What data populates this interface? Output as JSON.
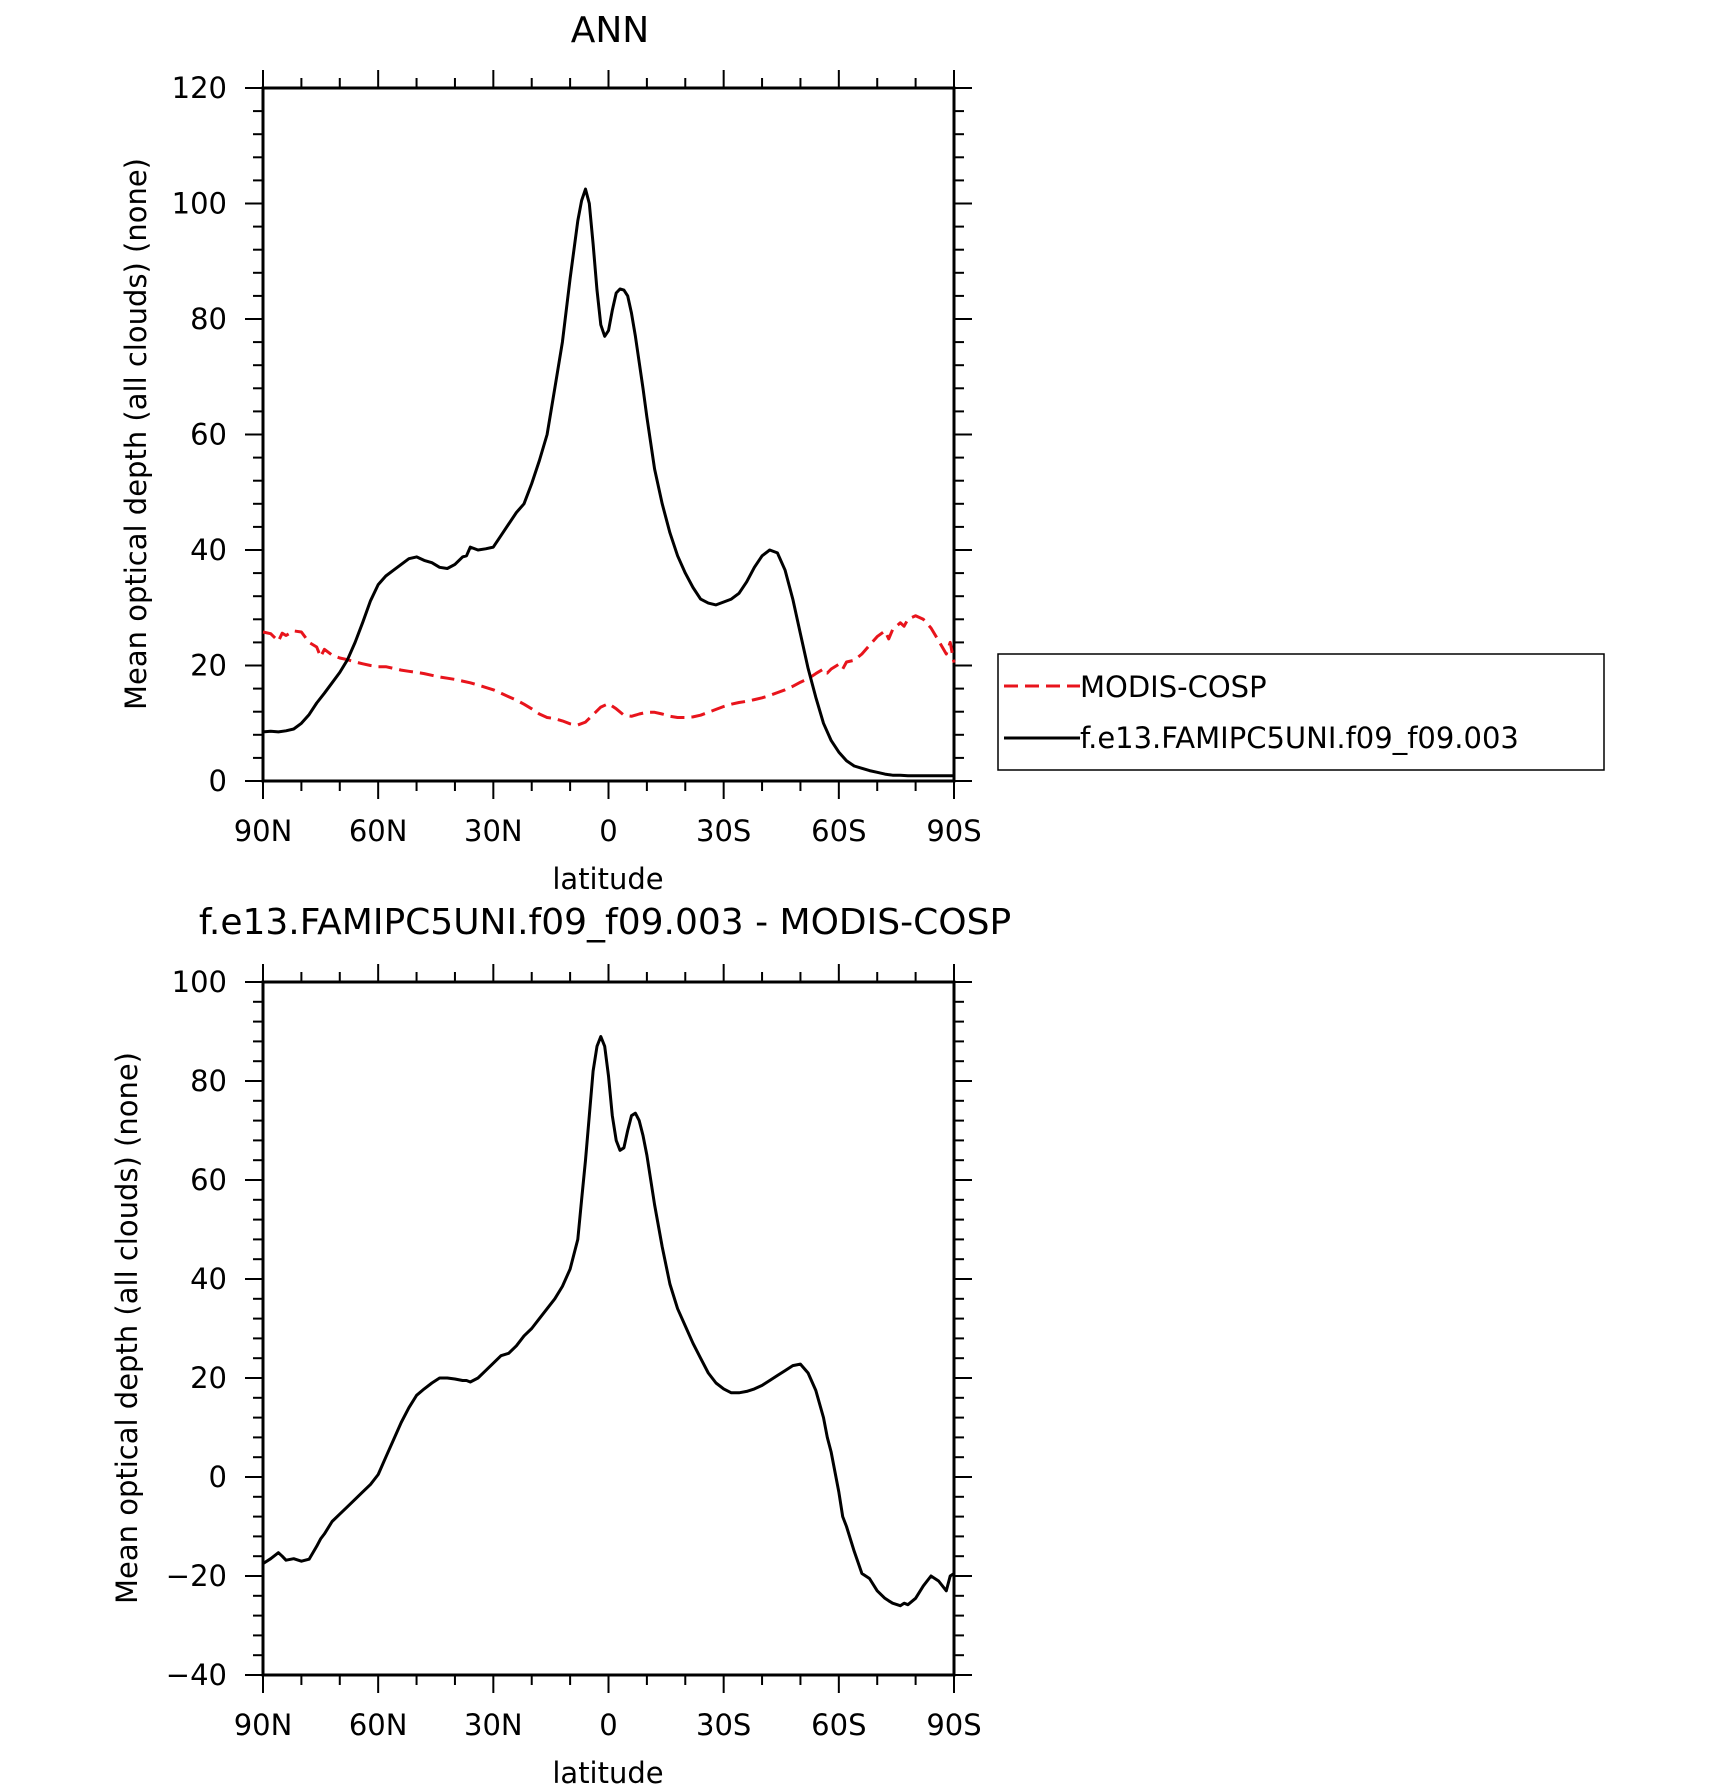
{
  "chart_data": [
    {
      "type": "line",
      "title": "ANN",
      "xlabel": "latitude",
      "ylabel": "Mean optical depth (all clouds) (none)",
      "xlim": [
        -90,
        90
      ],
      "ylim": [
        0,
        120
      ],
      "xticks": [
        -90,
        -60,
        -30,
        0,
        30,
        60,
        90
      ],
      "xtick_labels": [
        "90N",
        "60N",
        "30N",
        "0",
        "30S",
        "60S",
        "90S"
      ],
      "yticks": [
        0,
        20,
        40,
        60,
        80,
        100,
        120
      ],
      "ytick_labels": [
        "0",
        "20",
        "40",
        "60",
        "80",
        "100",
        "120"
      ],
      "grid": false,
      "legend_position": "right",
      "series": [
        {
          "name": "MODIS-COSP",
          "color": "#e8141c",
          "style": "dashed",
          "x": [
            -90,
            -88,
            -86,
            -85,
            -84,
            -82,
            -80,
            -78,
            -76,
            -75,
            -74,
            -72,
            -70,
            -68,
            -66,
            -64,
            -62,
            -60,
            -58,
            -56,
            -54,
            -52,
            -50,
            -48,
            -46,
            -44,
            -42,
            -40,
            -38,
            -36,
            -34,
            -32,
            -30,
            -28,
            -26,
            -24,
            -22,
            -20,
            -18,
            -16,
            -14,
            -12,
            -10,
            -8,
            -6,
            -4,
            -2,
            0,
            2,
            4,
            6,
            8,
            10,
            12,
            14,
            16,
            18,
            20,
            22,
            24,
            26,
            28,
            30,
            32,
            34,
            36,
            38,
            40,
            42,
            44,
            46,
            48,
            50,
            52,
            54,
            56,
            57,
            58,
            60,
            61,
            62,
            64,
            66,
            68,
            70,
            72,
            73,
            74,
            76,
            77,
            78,
            80,
            82,
            84,
            86,
            88,
            89,
            90
          ],
          "y": [
            25.8,
            25.5,
            24.2,
            25.6,
            25.2,
            26.0,
            25.8,
            24.0,
            23.2,
            21.5,
            22.8,
            21.8,
            21.3,
            21.0,
            20.6,
            20.3,
            20.0,
            19.8,
            19.8,
            19.5,
            19.2,
            19.0,
            18.8,
            18.6,
            18.3,
            18.0,
            17.8,
            17.6,
            17.3,
            17.0,
            16.6,
            16.2,
            15.8,
            15.2,
            14.6,
            14.0,
            13.3,
            12.5,
            11.6,
            11.0,
            10.8,
            10.4,
            9.9,
            9.7,
            10.2,
            11.5,
            12.8,
            13.4,
            12.5,
            11.4,
            11.2,
            11.6,
            11.9,
            11.9,
            11.6,
            11.2,
            11.0,
            11.0,
            11.1,
            11.4,
            11.9,
            12.4,
            12.9,
            13.3,
            13.6,
            13.8,
            14.1,
            14.4,
            14.8,
            15.3,
            15.8,
            16.4,
            17.1,
            17.7,
            18.6,
            19.4,
            18.7,
            19.4,
            20.2,
            19.4,
            20.6,
            20.9,
            22.0,
            23.5,
            25.0,
            26.0,
            24.6,
            26.2,
            27.4,
            26.8,
            28.0,
            28.6,
            28.0,
            26.5,
            24.3,
            22.0,
            24.0,
            20.5
          ]
        },
        {
          "name": "f.e13.FAMIPC5UNI.f09_f09.003",
          "color": "#000000",
          "style": "solid",
          "x": [
            -90,
            -88,
            -86,
            -84,
            -82,
            -80,
            -78,
            -76,
            -74,
            -72,
            -70,
            -68,
            -66,
            -64,
            -62,
            -60,
            -58,
            -56,
            -54,
            -52,
            -50,
            -48,
            -46,
            -44,
            -42,
            -40,
            -38,
            -37,
            -36,
            -34,
            -32,
            -30,
            -28,
            -26,
            -24,
            -22,
            -20,
            -18,
            -16,
            -14,
            -12,
            -10,
            -8,
            -7,
            -6,
            -5,
            -4,
            -3,
            -2,
            -1,
            0,
            1,
            2,
            3,
            4,
            5,
            6,
            7,
            8,
            9,
            10,
            12,
            14,
            16,
            18,
            20,
            22,
            24,
            26,
            28,
            30,
            32,
            34,
            36,
            38,
            40,
            42,
            44,
            46,
            48,
            50,
            52,
            54,
            56,
            58,
            60,
            62,
            64,
            66,
            68,
            70,
            72,
            74,
            76,
            78,
            80,
            82,
            84,
            86,
            88,
            90
          ],
          "y": [
            8.5,
            8.6,
            8.5,
            8.7,
            9.0,
            10.0,
            11.5,
            13.5,
            15.2,
            17.0,
            18.8,
            21.0,
            24.0,
            27.5,
            31.2,
            34.0,
            35.5,
            36.5,
            37.5,
            38.5,
            38.8,
            38.2,
            37.8,
            37.0,
            36.8,
            37.5,
            38.8,
            39.0,
            40.5,
            40.0,
            40.2,
            40.5,
            42.5,
            44.5,
            46.5,
            48.0,
            51.5,
            55.5,
            60.0,
            68.0,
            76.0,
            87.0,
            97.0,
            100.5,
            102.5,
            100.0,
            93.0,
            85.0,
            79.0,
            77.0,
            78.0,
            81.5,
            84.5,
            85.2,
            85.0,
            84.0,
            81.0,
            77.0,
            72.5,
            68.0,
            63.0,
            54.0,
            48.0,
            43.0,
            39.0,
            36.0,
            33.5,
            31.5,
            30.8,
            30.5,
            31.0,
            31.5,
            32.5,
            34.5,
            37.0,
            39.0,
            40.0,
            39.5,
            36.5,
            31.5,
            25.5,
            19.5,
            14.5,
            10.0,
            7.0,
            5.0,
            3.5,
            2.6,
            2.2,
            1.8,
            1.5,
            1.2,
            1.0,
            1.0,
            0.9,
            0.9,
            0.9,
            0.9,
            0.9,
            0.9,
            0.9
          ]
        }
      ]
    },
    {
      "type": "line",
      "title": "f.e13.FAMIPC5UNI.f09_f09.003 - MODIS-COSP",
      "xlabel": "latitude",
      "ylabel": "Mean optical depth (all clouds) (none)",
      "xlim": [
        -90,
        90
      ],
      "ylim": [
        -40,
        100
      ],
      "xticks": [
        -90,
        -60,
        -30,
        0,
        30,
        60,
        90
      ],
      "xtick_labels": [
        "90N",
        "60N",
        "30N",
        "0",
        "30S",
        "60S",
        "90S"
      ],
      "yticks": [
        -40,
        -20,
        0,
        20,
        40,
        60,
        80,
        100
      ],
      "ytick_labels": [
        "−40",
        "−20",
        "0",
        "20",
        "40",
        "60",
        "80",
        "100"
      ],
      "grid": false,
      "series": [
        {
          "color": "#000000",
          "style": "solid",
          "x": [
            -90,
            -88,
            -86,
            -85,
            -84,
            -82,
            -80,
            -78,
            -76,
            -75,
            -74,
            -72,
            -70,
            -68,
            -66,
            -64,
            -62,
            -60,
            -58,
            -56,
            -54,
            -52,
            -50,
            -48,
            -46,
            -44,
            -42,
            -40,
            -38,
            -37,
            -36,
            -34,
            -32,
            -30,
            -28,
            -26,
            -24,
            -22,
            -20,
            -18,
            -16,
            -14,
            -12,
            -10,
            -8,
            -7,
            -6,
            -5,
            -4,
            -3,
            -2,
            -1,
            0,
            1,
            2,
            3,
            4,
            5,
            6,
            7,
            8,
            9,
            10,
            12,
            14,
            16,
            18,
            20,
            22,
            24,
            26,
            28,
            30,
            32,
            34,
            36,
            38,
            40,
            42,
            44,
            46,
            48,
            50,
            52,
            54,
            56,
            57,
            58,
            60,
            61,
            62,
            64,
            66,
            68,
            70,
            72,
            73,
            74,
            76,
            77,
            78,
            80,
            82,
            84,
            86,
            88,
            89,
            90
          ],
          "y": [
            -17.5,
            -16.5,
            -15.3,
            -16.0,
            -16.8,
            -16.5,
            -17.0,
            -16.6,
            -14.0,
            -12.5,
            -11.5,
            -9.0,
            -7.5,
            -6.0,
            -4.5,
            -3.0,
            -1.5,
            0.5,
            4.0,
            7.5,
            11.0,
            14.0,
            16.5,
            17.8,
            19.0,
            20.0,
            20.0,
            19.8,
            19.5,
            19.5,
            19.2,
            20.0,
            21.5,
            23.0,
            24.5,
            25.0,
            26.5,
            28.5,
            30.0,
            32.0,
            34.0,
            36.0,
            38.5,
            42.0,
            48.0,
            56.0,
            64.0,
            73.0,
            82.0,
            87.0,
            89.0,
            87.0,
            81.0,
            73.0,
            68.0,
            66.0,
            66.5,
            70.0,
            73.0,
            73.5,
            72.0,
            69.0,
            65.0,
            55.0,
            46.5,
            39.0,
            34.0,
            30.5,
            27.0,
            24.0,
            21.0,
            19.0,
            17.8,
            17.0,
            17.0,
            17.3,
            17.8,
            18.5,
            19.5,
            20.5,
            21.5,
            22.5,
            22.8,
            21.0,
            17.5,
            12.0,
            8.0,
            5.0,
            -3.0,
            -8.0,
            -10.0,
            -15.0,
            -19.5,
            -20.5,
            -23.0,
            -24.5,
            -25.0,
            -25.5,
            -26.0,
            -25.5,
            -25.8,
            -24.5,
            -22.0,
            -20.0,
            -21.0,
            -23.0,
            -20.0,
            -19.5
          ]
        }
      ]
    }
  ]
}
